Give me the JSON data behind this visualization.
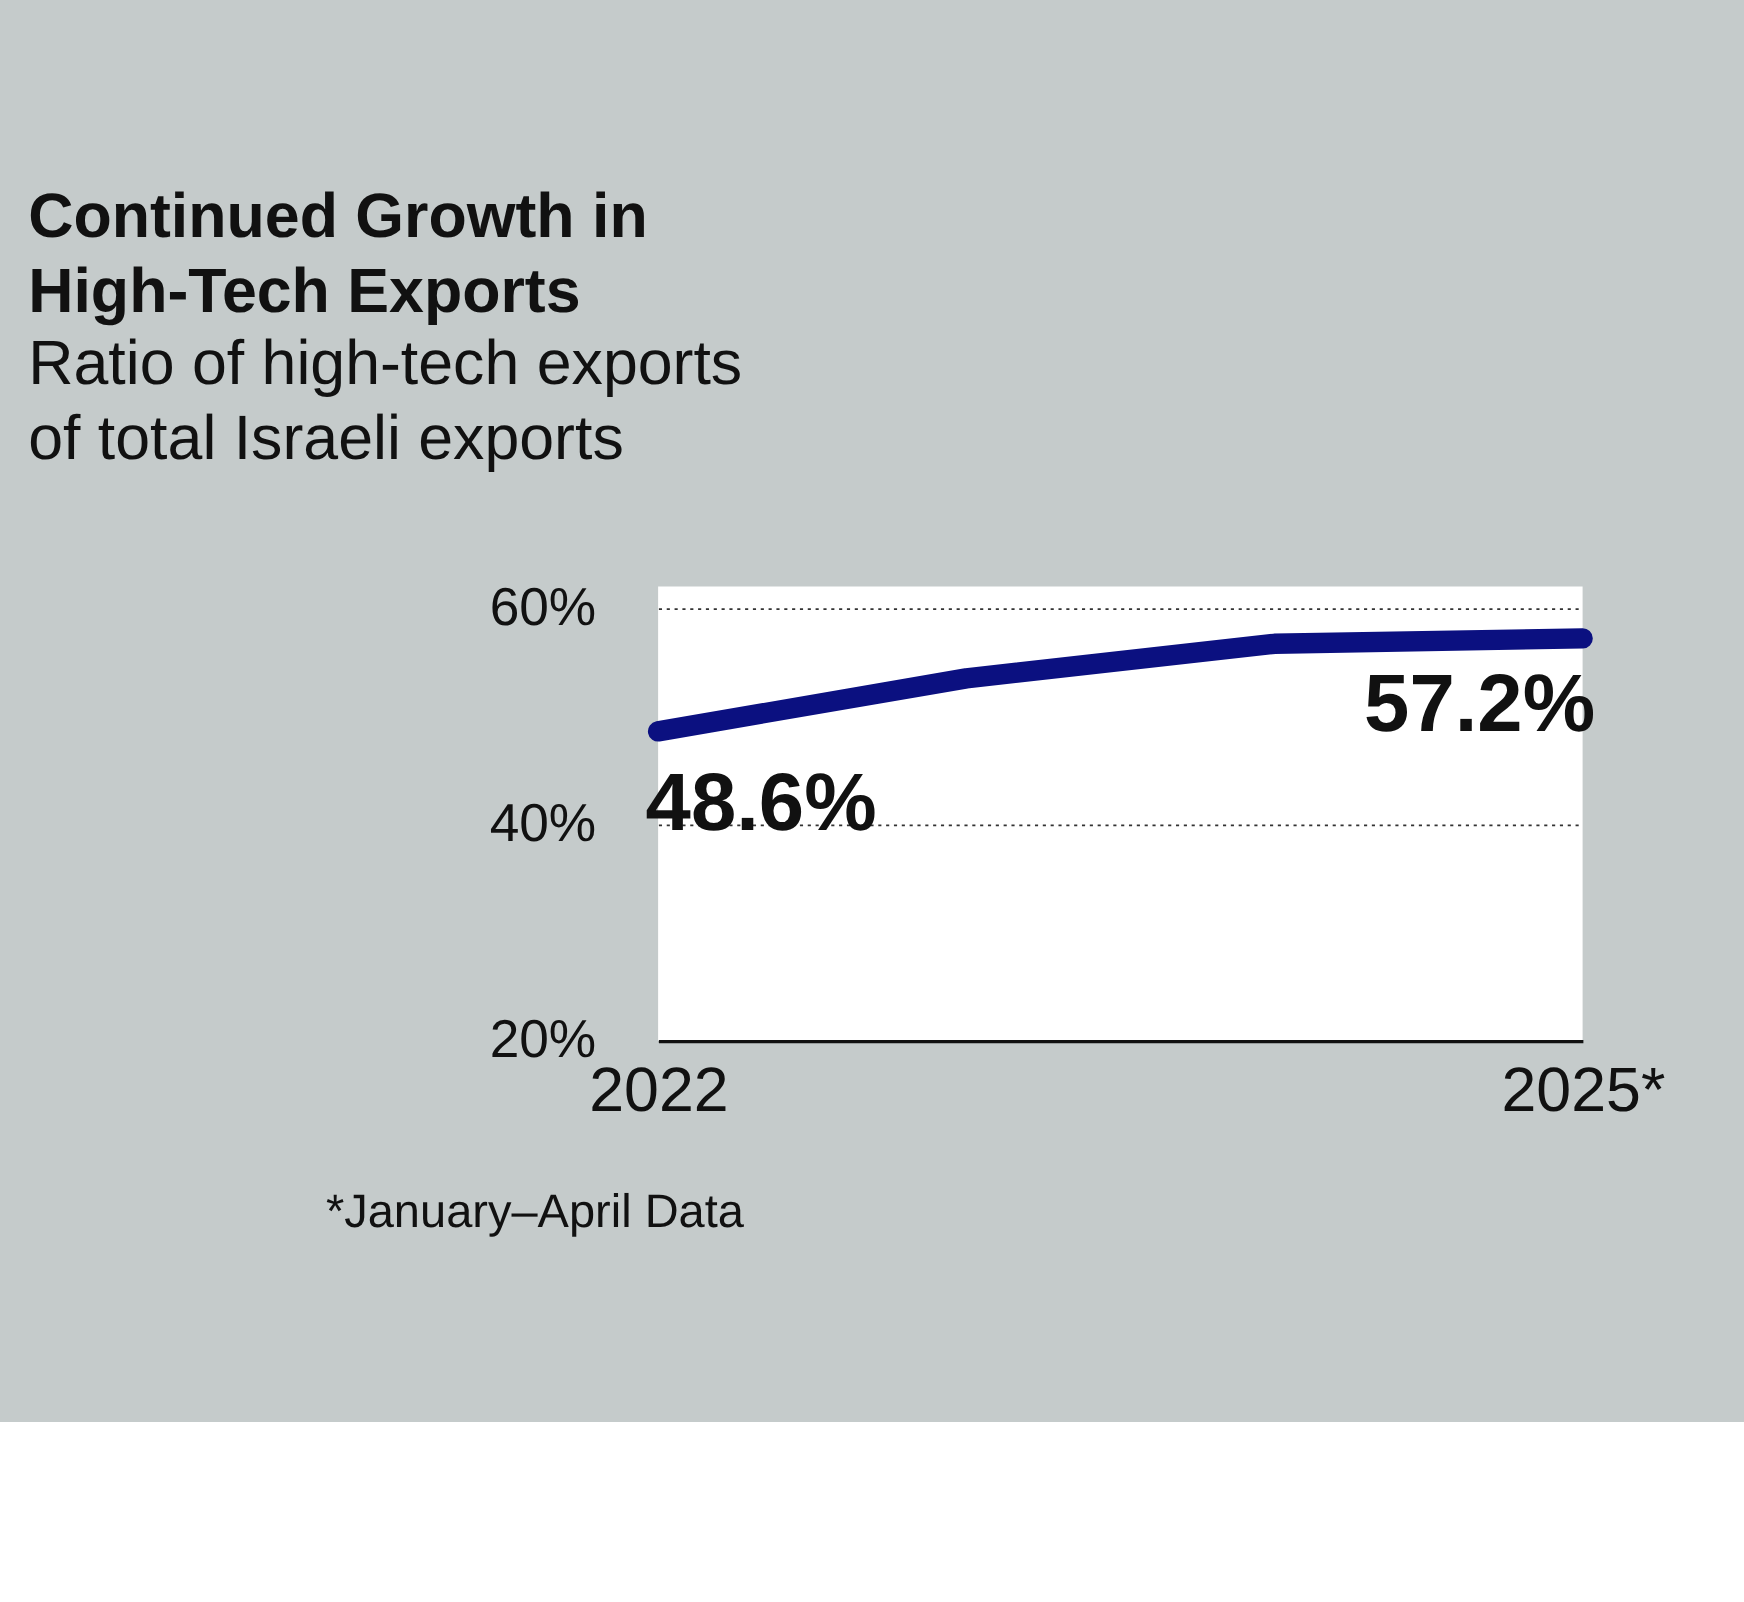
{
  "chart_data": {
    "type": "line",
    "title": "Continued Growth in High-Tech Exports",
    "subtitle": "Ratio of high-tech exports of total Israeli exports",
    "categories": [
      "2022",
      null,
      null,
      "2025*"
    ],
    "series": [
      {
        "color": "#0b1080",
        "values": [
          48.6,
          53.5,
          56.7,
          57.2
        ],
        "value_labels": [
          "48.6%",
          null,
          null,
          "57.2%"
        ]
      }
    ],
    "ylim": [
      20,
      62
    ],
    "yticks": [
      {
        "value": 20,
        "label": "20%"
      },
      {
        "value": 40,
        "label": "40%"
      },
      {
        "value": 60,
        "label": "60%"
      }
    ],
    "grid": "y",
    "marker": "none",
    "line_style": "solid",
    "annotations": [
      "*January–April Data"
    ]
  }
}
